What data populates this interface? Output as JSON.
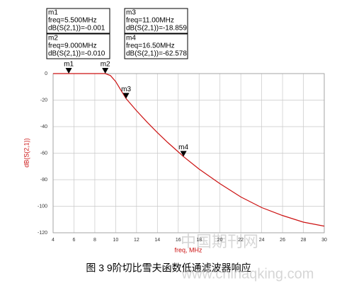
{
  "chart_data": {
    "type": "line",
    "x_label": "freq, MHz",
    "y_label": "dB(S(2,1))",
    "caption": "图 3   9阶切比雪夫函数低通滤波器响应",
    "watermark": "中国期刊网",
    "watermark_url": "www.chinaqking.com",
    "xlim": [
      4,
      30
    ],
    "xticks": [
      4,
      6,
      8,
      10,
      12,
      14,
      16,
      18,
      20,
      22,
      24,
      26,
      28,
      30
    ],
    "ylim": [
      -120,
      0
    ],
    "yticks": [
      0,
      -20,
      -40,
      -60,
      -80,
      -100,
      -120
    ],
    "grid": true,
    "x": [
      4,
      5,
      6,
      7,
      8,
      8.5,
      9,
      9.5,
      10,
      10.5,
      11,
      12,
      13,
      14,
      15,
      16,
      16.5,
      18,
      20,
      22,
      24,
      26,
      28,
      30
    ],
    "series": [
      {
        "name": "dB(S(2,1))",
        "color": "#cc1111",
        "values": [
          0,
          0,
          0,
          0,
          0,
          0,
          -0.01,
          -1.5,
          -6,
          -12.5,
          -18.859,
          -28,
          -36.5,
          -44.5,
          -52,
          -59,
          -62.578,
          -72,
          -83,
          -93,
          -101,
          -107,
          -112,
          -115
        ]
      }
    ],
    "markers": [
      {
        "name": "m1",
        "x": 5.5,
        "y": -0.001,
        "freq_label": "freq=5.500MHz",
        "value_label": "dB(S(2,1))=-0.001"
      },
      {
        "name": "m2",
        "x": 9.0,
        "y": -0.01,
        "freq_label": "freq=9.000MHz",
        "value_label": "dB(S(2,1))=-0.010"
      },
      {
        "name": "m3",
        "x": 11.0,
        "y": -18.859,
        "freq_label": "freq=11.00MHz",
        "value_label": "dB(S(2,1))=-18.859"
      },
      {
        "name": "m4",
        "x": 16.5,
        "y": -62.578,
        "freq_label": "freq=16.50MHz",
        "value_label": "dB(S(2,1))=-62.578"
      }
    ]
  }
}
